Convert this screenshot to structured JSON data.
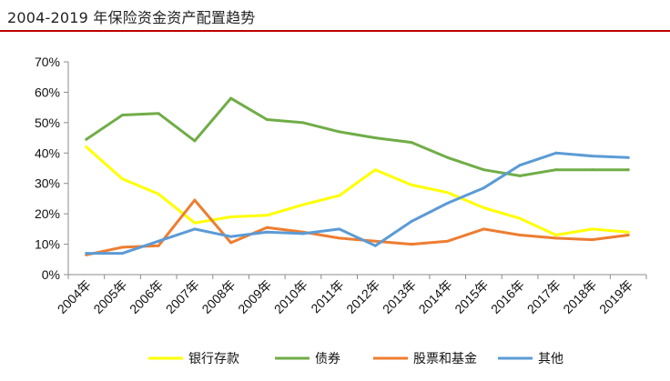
{
  "title": "2004-2019 年保险资金资产配置趋势",
  "title_rule_color": "#c00000",
  "chart_data": {
    "type": "line",
    "categories": [
      "2004年",
      "2005年",
      "2006年",
      "2007年",
      "2008年",
      "2009年",
      "2010年",
      "2011年",
      "2012年",
      "2013年",
      "2014年",
      "2015年",
      "2016年",
      "2017年",
      "2018年",
      "2019年"
    ],
    "ylim": [
      0,
      70
    ],
    "yticks": [
      0,
      10,
      20,
      30,
      40,
      50,
      60,
      70
    ],
    "ytick_labels": [
      "0%",
      "10%",
      "20%",
      "30%",
      "40%",
      "50%",
      "60%",
      "70%"
    ],
    "grid": false,
    "legend_position": "bottom",
    "series": [
      {
        "name": "银行存款",
        "color": "#ffff00",
        "values": [
          42,
          31.5,
          26.5,
          17,
          19,
          19.5,
          23,
          26,
          34.5,
          29.5,
          27,
          22,
          18.5,
          13,
          15,
          14
        ]
      },
      {
        "name": "债券",
        "color": "#70ad47",
        "values": [
          44.5,
          52.5,
          53,
          44,
          58,
          51,
          50,
          47,
          45,
          43.5,
          38.5,
          34.5,
          32.5,
          34.5,
          34.5,
          34.5
        ]
      },
      {
        "name": "股票和基金",
        "color": "#ed7d31",
        "values": [
          6.5,
          9,
          9.5,
          24.5,
          10.5,
          15.5,
          14,
          12,
          11,
          10,
          11,
          15,
          13,
          12,
          11.5,
          13
        ]
      },
      {
        "name": "其他",
        "color": "#5b9bd5",
        "values": [
          7,
          7,
          11,
          15,
          12.5,
          14,
          13.5,
          15,
          9.5,
          17.5,
          23.5,
          28.5,
          36,
          40,
          39,
          38.5
        ]
      }
    ]
  }
}
